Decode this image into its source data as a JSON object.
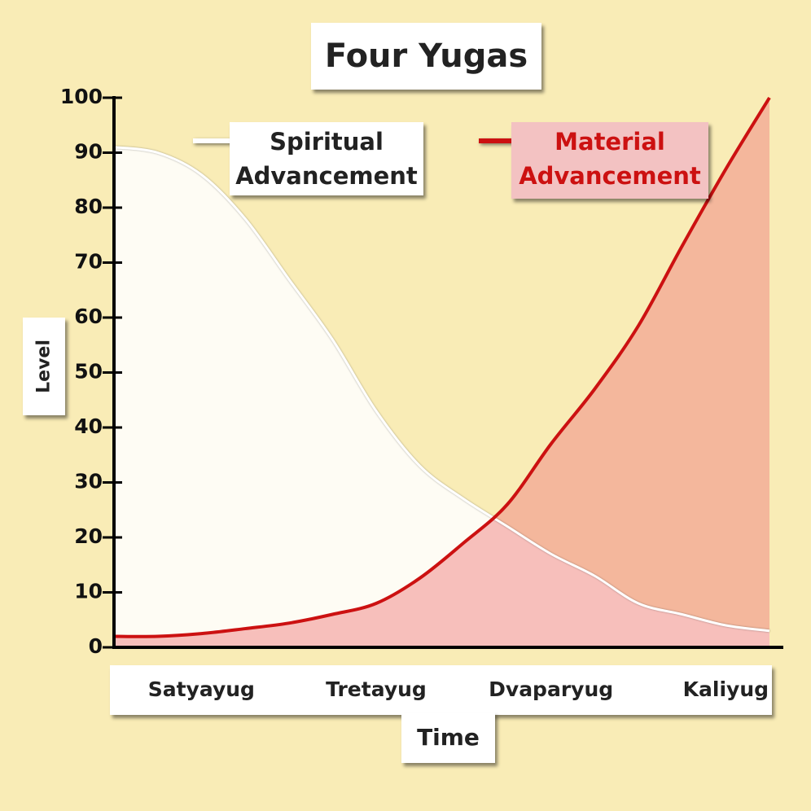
{
  "chart_data": {
    "type": "line",
    "title": "Four Yugas",
    "xlabel": "Time",
    "ylabel": "Level",
    "categories": [
      null,
      null,
      "Satyayug",
      null,
      null,
      null,
      "Tretayug",
      null,
      null,
      null,
      "Dvaparyug",
      null,
      null,
      null,
      "Kaliyug",
      null
    ],
    "series": [
      {
        "name": "Spiritual Advancement",
        "color": "#ffffff",
        "fill": "rgba(255,255,255,0.85)",
        "values": [
          91,
          90,
          86,
          78,
          67,
          56,
          43,
          33,
          27,
          22,
          17,
          13,
          8,
          6,
          4,
          3
        ]
      },
      {
        "name": "Material Advancement",
        "color": "#cc1111",
        "fill": "rgba(240,130,130,0.5)",
        "values": [
          2,
          2,
          2.5,
          3.4,
          4.4,
          6,
          8,
          12.6,
          19,
          26,
          37,
          47,
          58.5,
          73,
          87,
          100
        ]
      }
    ],
    "ylim": [
      0,
      100
    ],
    "yticks": [
      0,
      10,
      20,
      30,
      40,
      50,
      60,
      70,
      80,
      90,
      100
    ]
  }
}
